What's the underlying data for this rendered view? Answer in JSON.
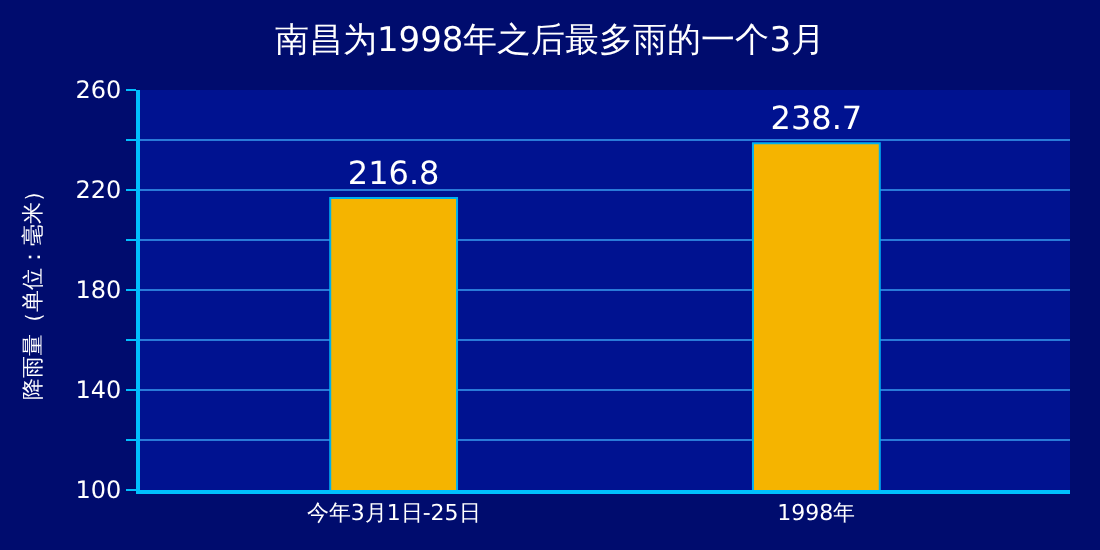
{
  "chart_data": {
    "type": "bar",
    "title": "南昌为1998年之后最多雨的一个3月",
    "ylabel": "降雨量（单位：毫米）",
    "categories": [
      "今年3月1日-25日",
      "1998年"
    ],
    "values": [
      216.8,
      238.7
    ],
    "color": "#f5b400",
    "ylim": [
      100,
      260
    ],
    "yticks": [
      100,
      {
        "value": 120,
        "label": null
      },
      140,
      {
        "value": 160,
        "label": null
      },
      180,
      {
        "value": 200,
        "label": null
      },
      220,
      {
        "value": 240,
        "label": null
      },
      260
    ],
    "grid": "y",
    "data_labels": true,
    "legend": false
  }
}
